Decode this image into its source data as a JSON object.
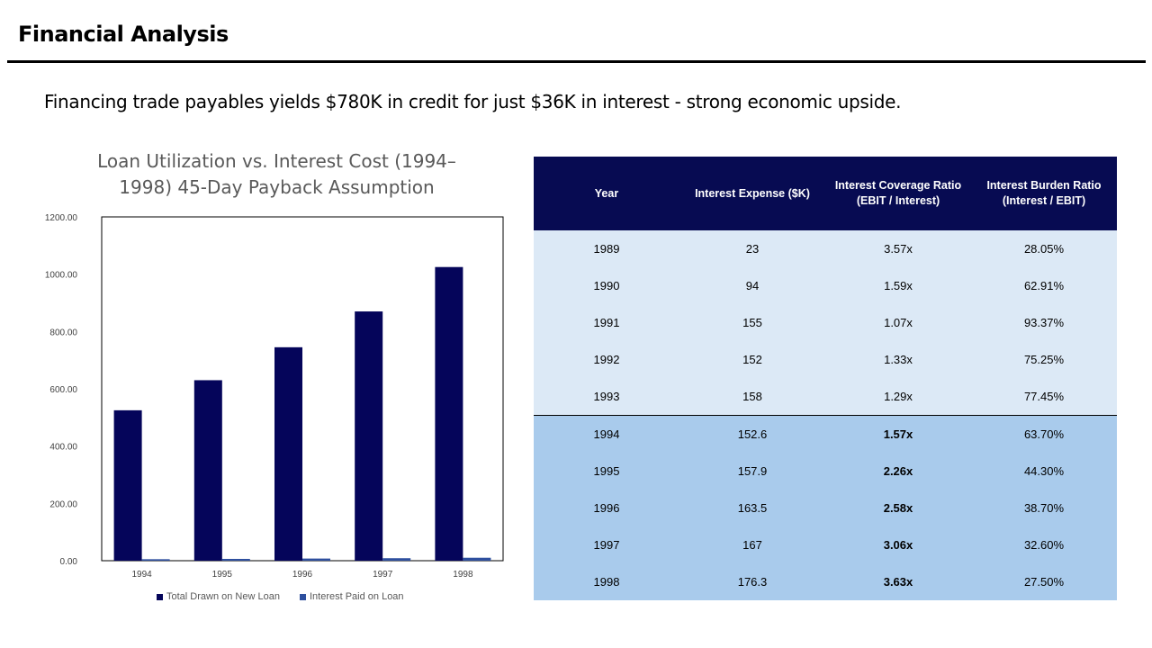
{
  "page": {
    "title": "Financial Analysis",
    "subtitle": "Financing trade payables yields $780K in credit for just $36K in interest - strong economic upside."
  },
  "colors": {
    "series_primary": "#05055a",
    "series_secondary": "#2e4f9e",
    "table_header_bg": "#070b52",
    "historical_row_bg": "#dce9f6",
    "projected_row_bg": "#a9cbec"
  },
  "chart_data": {
    "type": "bar",
    "title": "Loan Utilization vs. Interest Cost (1994– 1998) 45-Day Payback Assumption",
    "title_lines": [
      "Loan Utilization vs. Interest Cost (1994–",
      "1998) 45-Day Payback Assumption"
    ],
    "categories": [
      "1994",
      "1995",
      "1996",
      "1997",
      "1998"
    ],
    "series": [
      {
        "name": "Total Drawn on New Loan",
        "values": [
          525,
          630,
          745,
          870,
          1025
        ]
      },
      {
        "name": "Interest Paid on Loan",
        "values": [
          5.2,
          6.3,
          7.5,
          8.7,
          10.3
        ]
      }
    ],
    "ylim": [
      0,
      1200
    ],
    "yticks": [
      "0.00",
      "200.00",
      "400.00",
      "600.00",
      "800.00",
      "1000.00",
      "1200.00"
    ],
    "xlabel": "",
    "ylabel": "",
    "grid": false,
    "legend_position": "bottom"
  },
  "table": {
    "headers": [
      "Year",
      "Interest Expense ($K)",
      "Interest Coverage Ratio (EBIT / Interest)",
      "Interest Burden Ratio (Interest / EBIT)"
    ],
    "rows": [
      {
        "year": "1989",
        "expense": "23",
        "coverage": "3.57x",
        "burden": "28.05%"
      },
      {
        "year": "1990",
        "expense": "94",
        "coverage": "1.59x",
        "burden": "62.91%"
      },
      {
        "year": "1991",
        "expense": "155",
        "coverage": "1.07x",
        "burden": "93.37%"
      },
      {
        "year": "1992",
        "expense": "152",
        "coverage": "1.33x",
        "burden": "75.25%"
      },
      {
        "year": "1993",
        "expense": "158",
        "coverage": "1.29x",
        "burden": "77.45%"
      },
      {
        "year": "1994",
        "expense": "152.6",
        "coverage": "1.57x",
        "burden": "63.70%"
      },
      {
        "year": "1995",
        "expense": "157.9",
        "coverage": "2.26x",
        "burden": "44.30%"
      },
      {
        "year": "1996",
        "expense": "163.5",
        "coverage": "2.58x",
        "burden": "38.70%"
      },
      {
        "year": "1997",
        "expense": "167",
        "coverage": "3.06x",
        "burden": "32.60%"
      },
      {
        "year": "1998",
        "expense": "176.3",
        "coverage": "3.63x",
        "burden": "27.50%"
      }
    ]
  }
}
